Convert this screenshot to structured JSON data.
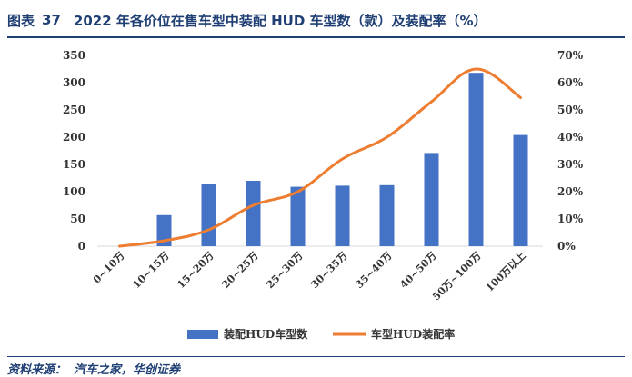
{
  "figure": {
    "label": "图表",
    "number": "37",
    "title": "2022 年各价位在售车型中装配 HUD 车型数（款）及装配率（%）"
  },
  "source": {
    "label": "资料来源：",
    "text": "汽车之家，华创证券"
  },
  "chart_data": {
    "type": "bar",
    "categories": [
      "0~10万",
      "10~15万",
      "15~20万",
      "20~25万",
      "25~30万",
      "30~35万",
      "35~40万",
      "40~50万",
      "50万~100万",
      "100万以上"
    ],
    "series": [
      {
        "name": "装配HUD车型数",
        "type": "bar",
        "axis": "left",
        "values": [
          0,
          57,
          114,
          120,
          109,
          111,
          112,
          171,
          318,
          204
        ],
        "color": "#4472C4"
      },
      {
        "name": "车型HUD装配率",
        "type": "line",
        "axis": "right",
        "values": [
          0.0,
          2.0,
          6.0,
          15.0,
          20.0,
          32.0,
          40.0,
          53.0,
          65.0,
          54.5
        ],
        "color": "#ED7D31"
      }
    ],
    "left_axis": {
      "ylim": [
        0,
        350
      ],
      "ticks": [
        "0",
        "50",
        "100",
        "150",
        "200",
        "250",
        "300",
        "350"
      ]
    },
    "right_axis": {
      "ylim": [
        0,
        70
      ],
      "ticks": [
        "0%",
        "10%",
        "20%",
        "30%",
        "40%",
        "50%",
        "60%",
        "70%"
      ]
    },
    "grid": false,
    "legend": "bottom"
  }
}
